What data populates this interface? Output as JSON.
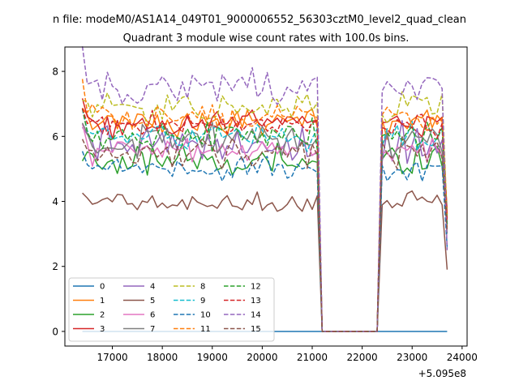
{
  "chart_data": {
    "type": "line",
    "suptitle": "n file: modeM0/AS1A14_049T01_9000006552_56303cztM0_level2_quad_clean",
    "title": "Quadrant 3 module wise count rates with 100.0s bins.",
    "xlabel": "",
    "ylabel": "",
    "offset_label": "+5.095e8",
    "xlim": [
      16050,
      24100
    ],
    "ylim": [
      -0.45,
      8.75
    ],
    "x_ticks": [
      17000,
      18000,
      19000,
      20000,
      21000,
      22000,
      23000,
      24000
    ],
    "x_tick_labels": [
      "17000",
      "18000",
      "19000",
      "20000",
      "21000",
      "22000",
      "23000",
      "24000"
    ],
    "y_ticks": [
      0,
      2,
      4,
      6,
      8
    ],
    "y_tick_labels": [
      "0",
      "2",
      "4",
      "6",
      "8"
    ],
    "x_segments": {
      "seg1": [
        16400,
        21100,
        100
      ],
      "gap": [
        21200,
        22300,
        100
      ],
      "seg2": [
        22400,
        23600,
        100
      ],
      "end": 23700
    },
    "legend": {
      "location": "lower-left",
      "columns": 4
    },
    "series": [
      {
        "name": "0",
        "color": "#1f77b4",
        "style": "solid",
        "mean": 0.0,
        "spread": 0.0,
        "end": 0.0
      },
      {
        "name": "1",
        "color": "#ff7f0e",
        "style": "solid",
        "mean": 6.4,
        "spread": 0.35,
        "end": 3.2
      },
      {
        "name": "2",
        "color": "#2ca02c",
        "style": "solid",
        "mean": 5.2,
        "spread": 0.45,
        "end": 3.5
      },
      {
        "name": "3",
        "color": "#d62728",
        "style": "solid",
        "mean": 6.4,
        "spread": 0.3,
        "end": 3.6
      },
      {
        "name": "4",
        "color": "#9467bd",
        "style": "solid",
        "mean": 5.8,
        "spread": 0.4,
        "end": 3.8
      },
      {
        "name": "5",
        "color": "#8c564b",
        "style": "solid",
        "mean": 3.95,
        "spread": 0.25,
        "end": 1.9
      },
      {
        "name": "6",
        "color": "#e377c2",
        "style": "solid",
        "mean": 5.6,
        "spread": 0.3,
        "end": 3.4
      },
      {
        "name": "7",
        "color": "#7f7f7f",
        "style": "solid",
        "mean": 5.9,
        "spread": 0.35,
        "end": 3.0
      },
      {
        "name": "8",
        "color": "#bcbd22",
        "style": "dashed",
        "mean": 6.9,
        "spread": 0.35,
        "end": 3.5
      },
      {
        "name": "9",
        "color": "#17becf",
        "style": "dashed",
        "mean": 6.0,
        "spread": 0.35,
        "end": 3.3
      },
      {
        "name": "10",
        "color": "#1f77b4",
        "style": "dashed",
        "mean": 5.0,
        "spread": 0.3,
        "end": 2.6
      },
      {
        "name": "11",
        "color": "#ff7f0e",
        "style": "dashed",
        "mean": 6.6,
        "spread": 0.35,
        "end": 3.6
      },
      {
        "name": "12",
        "color": "#2ca02c",
        "style": "dashed",
        "mean": 6.0,
        "spread": 0.35,
        "end": 3.3
      },
      {
        "name": "13",
        "color": "#d62728",
        "style": "dashed",
        "mean": 6.3,
        "spread": 0.3,
        "end": 3.4
      },
      {
        "name": "14",
        "color": "#9467bd",
        "style": "dashed",
        "mean": 7.5,
        "spread": 0.4,
        "end": 2.5
      },
      {
        "name": "15",
        "color": "#8c564b",
        "style": "dashed",
        "mean": 5.5,
        "spread": 0.35,
        "end": 3.1
      }
    ]
  }
}
